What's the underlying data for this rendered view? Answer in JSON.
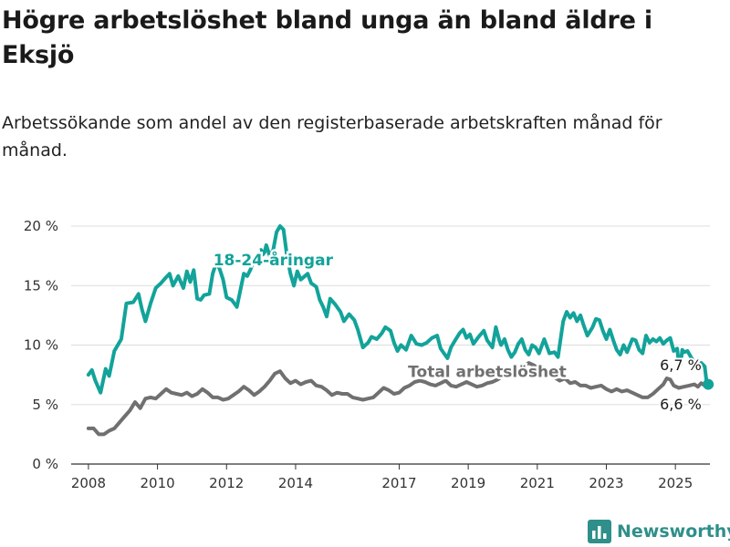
{
  "title": "Högre arbetslöshet bland unga än bland äldre i Eksjö",
  "subtitle": "Arbetssökande som andel av den registerbaserade arbetskraften månad för månad.",
  "brand": {
    "name": "Newsworthy",
    "icon": "bar-chart-logo-icon"
  },
  "colors": {
    "youth": "#12a39a",
    "total": "#707070",
    "grid": "#dddddd",
    "brand": "#2f8f8a"
  },
  "chart_data": {
    "type": "line",
    "title": "Högre arbetslöshet bland unga än bland äldre i Eksjö",
    "subtitle": "Arbetssökande som andel av den registerbaserade arbetskraften månad för månad.",
    "xlabel": "",
    "ylabel": "",
    "xlim": [
      2007.5,
      2026.0
    ],
    "ylim": [
      0,
      20
    ],
    "y_ticks": [
      0,
      5,
      10,
      15,
      20
    ],
    "y_tick_labels": [
      "0 %",
      "5 %",
      "10 %",
      "15 %",
      "20 %"
    ],
    "x_ticks": [
      2008,
      2010,
      2012,
      2014,
      2017,
      2019,
      2021,
      2023,
      2025
    ],
    "x_tick_labels": [
      "2008",
      "2010",
      "2012",
      "2014",
      "2017",
      "2019",
      "2021",
      "2023",
      "2025"
    ],
    "grid": true,
    "legend": "inline labels",
    "series": [
      {
        "name": "18-24-åringar",
        "color": "#12a39a",
        "end_label": "6,7 %",
        "points": [
          [
            2008.0,
            7.5
          ],
          [
            2008.1,
            7.9
          ],
          [
            2008.2,
            7.0
          ],
          [
            2008.35,
            6.0
          ],
          [
            2008.5,
            8.0
          ],
          [
            2008.6,
            7.4
          ],
          [
            2008.75,
            9.5
          ],
          [
            2008.95,
            10.5
          ],
          [
            2009.1,
            13.5
          ],
          [
            2009.3,
            13.6
          ],
          [
            2009.45,
            14.3
          ],
          [
            2009.55,
            13.0
          ],
          [
            2009.65,
            12.0
          ],
          [
            2009.8,
            13.5
          ],
          [
            2009.95,
            14.8
          ],
          [
            2010.1,
            15.2
          ],
          [
            2010.25,
            15.7
          ],
          [
            2010.35,
            16.0
          ],
          [
            2010.45,
            15.0
          ],
          [
            2010.6,
            15.8
          ],
          [
            2010.75,
            14.8
          ],
          [
            2010.85,
            16.2
          ],
          [
            2010.95,
            15.3
          ],
          [
            2011.05,
            16.3
          ],
          [
            2011.15,
            13.9
          ],
          [
            2011.25,
            13.8
          ],
          [
            2011.35,
            14.2
          ],
          [
            2011.5,
            14.3
          ],
          [
            2011.6,
            16.0
          ],
          [
            2011.7,
            16.9
          ],
          [
            2011.8,
            16.4
          ],
          [
            2011.9,
            15.5
          ],
          [
            2012.0,
            14.0
          ],
          [
            2012.15,
            13.8
          ],
          [
            2012.3,
            13.2
          ],
          [
            2012.5,
            16.0
          ],
          [
            2012.6,
            15.8
          ],
          [
            2012.7,
            16.4
          ],
          [
            2012.8,
            17.2
          ],
          [
            2012.9,
            16.8
          ],
          [
            2013.0,
            18.0
          ],
          [
            2013.05,
            17.6
          ],
          [
            2013.1,
            17.8
          ],
          [
            2013.15,
            18.4
          ],
          [
            2013.25,
            17.5
          ],
          [
            2013.35,
            18.0
          ],
          [
            2013.45,
            19.5
          ],
          [
            2013.55,
            20.0
          ],
          [
            2013.65,
            19.7
          ],
          [
            2013.75,
            17.5
          ],
          [
            2013.85,
            16.0
          ],
          [
            2013.95,
            15.0
          ],
          [
            2014.05,
            16.2
          ],
          [
            2014.15,
            15.5
          ],
          [
            2014.35,
            16.0
          ],
          [
            2014.45,
            15.2
          ],
          [
            2014.6,
            14.9
          ],
          [
            2014.7,
            13.8
          ],
          [
            2014.8,
            13.2
          ],
          [
            2014.9,
            12.4
          ],
          [
            2015.0,
            13.9
          ],
          [
            2015.15,
            13.4
          ],
          [
            2015.3,
            12.8
          ],
          [
            2015.4,
            12.0
          ],
          [
            2015.55,
            12.6
          ],
          [
            2015.7,
            12.1
          ],
          [
            2015.8,
            11.3
          ],
          [
            2015.95,
            9.8
          ],
          [
            2016.1,
            10.2
          ],
          [
            2016.2,
            10.7
          ],
          [
            2016.35,
            10.5
          ],
          [
            2016.5,
            11.0
          ],
          [
            2016.6,
            11.5
          ],
          [
            2016.75,
            11.2
          ],
          [
            2016.85,
            10.2
          ],
          [
            2016.95,
            9.5
          ],
          [
            2017.05,
            10.0
          ],
          [
            2017.2,
            9.6
          ],
          [
            2017.35,
            10.8
          ],
          [
            2017.5,
            10.1
          ],
          [
            2017.65,
            10.0
          ],
          [
            2017.8,
            10.2
          ],
          [
            2017.95,
            10.6
          ],
          [
            2018.1,
            10.8
          ],
          [
            2018.2,
            9.7
          ],
          [
            2018.3,
            9.3
          ],
          [
            2018.4,
            8.9
          ],
          [
            2018.5,
            9.8
          ],
          [
            2018.6,
            10.3
          ],
          [
            2018.75,
            11.0
          ],
          [
            2018.85,
            11.3
          ],
          [
            2018.95,
            10.6
          ],
          [
            2019.05,
            10.9
          ],
          [
            2019.15,
            10.1
          ],
          [
            2019.3,
            10.7
          ],
          [
            2019.45,
            11.2
          ],
          [
            2019.55,
            10.4
          ],
          [
            2019.7,
            9.8
          ],
          [
            2019.8,
            11.5
          ],
          [
            2019.9,
            10.4
          ],
          [
            2019.95,
            10.0
          ],
          [
            2020.05,
            10.5
          ],
          [
            2020.15,
            9.6
          ],
          [
            2020.25,
            9.0
          ],
          [
            2020.35,
            9.4
          ],
          [
            2020.45,
            10.1
          ],
          [
            2020.55,
            10.5
          ],
          [
            2020.65,
            9.6
          ],
          [
            2020.75,
            9.2
          ],
          [
            2020.85,
            10.0
          ],
          [
            2020.95,
            9.8
          ],
          [
            2021.05,
            9.3
          ],
          [
            2021.2,
            10.5
          ],
          [
            2021.35,
            9.3
          ],
          [
            2021.5,
            9.4
          ],
          [
            2021.6,
            9.0
          ],
          [
            2021.75,
            12.0
          ],
          [
            2021.85,
            12.8
          ],
          [
            2021.95,
            12.3
          ],
          [
            2022.05,
            12.7
          ],
          [
            2022.15,
            12.0
          ],
          [
            2022.25,
            12.5
          ],
          [
            2022.35,
            11.6
          ],
          [
            2022.45,
            10.8
          ],
          [
            2022.6,
            11.5
          ],
          [
            2022.7,
            12.2
          ],
          [
            2022.8,
            12.1
          ],
          [
            2022.9,
            11.2
          ],
          [
            2023.0,
            10.5
          ],
          [
            2023.1,
            11.3
          ],
          [
            2023.2,
            10.4
          ],
          [
            2023.3,
            9.6
          ],
          [
            2023.4,
            9.2
          ],
          [
            2023.5,
            10.0
          ],
          [
            2023.6,
            9.4
          ],
          [
            2023.75,
            10.5
          ],
          [
            2023.85,
            10.4
          ],
          [
            2023.95,
            9.6
          ],
          [
            2024.05,
            9.3
          ],
          [
            2024.15,
            10.8
          ],
          [
            2024.25,
            10.2
          ],
          [
            2024.35,
            10.5
          ],
          [
            2024.45,
            10.3
          ],
          [
            2024.55,
            10.6
          ],
          [
            2024.65,
            10.1
          ],
          [
            2024.75,
            10.4
          ],
          [
            2024.85,
            10.6
          ],
          [
            2024.95,
            9.5
          ],
          [
            2025.05,
            9.7
          ],
          [
            2025.1,
            8.5
          ],
          [
            2025.15,
            8.4
          ],
          [
            2025.2,
            9.6
          ],
          [
            2025.25,
            9.4
          ],
          [
            2025.35,
            9.5
          ],
          [
            2025.45,
            9.0
          ],
          [
            2025.55,
            8.5
          ],
          [
            2025.65,
            8.0
          ],
          [
            2025.75,
            8.5
          ],
          [
            2025.85,
            8.2
          ],
          [
            2025.9,
            7.0
          ],
          [
            2025.95,
            6.7
          ]
        ]
      },
      {
        "name": "Total arbetslöshet",
        "color": "#707070",
        "end_label": "6,6 %",
        "points": [
          [
            2008.0,
            3.0
          ],
          [
            2008.15,
            3.0
          ],
          [
            2008.3,
            2.5
          ],
          [
            2008.45,
            2.5
          ],
          [
            2008.6,
            2.8
          ],
          [
            2008.75,
            3.0
          ],
          [
            2008.9,
            3.5
          ],
          [
            2009.05,
            4.0
          ],
          [
            2009.2,
            4.5
          ],
          [
            2009.35,
            5.2
          ],
          [
            2009.5,
            4.7
          ],
          [
            2009.65,
            5.5
          ],
          [
            2009.8,
            5.6
          ],
          [
            2009.95,
            5.5
          ],
          [
            2010.1,
            5.9
          ],
          [
            2010.25,
            6.3
          ],
          [
            2010.4,
            6.0
          ],
          [
            2010.55,
            5.9
          ],
          [
            2010.7,
            5.8
          ],
          [
            2010.85,
            6.0
          ],
          [
            2011.0,
            5.7
          ],
          [
            2011.15,
            5.9
          ],
          [
            2011.3,
            6.3
          ],
          [
            2011.45,
            6.0
          ],
          [
            2011.6,
            5.6
          ],
          [
            2011.75,
            5.6
          ],
          [
            2011.9,
            5.4
          ],
          [
            2012.05,
            5.5
          ],
          [
            2012.2,
            5.8
          ],
          [
            2012.35,
            6.1
          ],
          [
            2012.5,
            6.5
          ],
          [
            2012.65,
            6.2
          ],
          [
            2012.8,
            5.8
          ],
          [
            2012.95,
            6.1
          ],
          [
            2013.1,
            6.5
          ],
          [
            2013.25,
            7.0
          ],
          [
            2013.4,
            7.6
          ],
          [
            2013.55,
            7.8
          ],
          [
            2013.7,
            7.2
          ],
          [
            2013.85,
            6.8
          ],
          [
            2014.0,
            7.0
          ],
          [
            2014.15,
            6.7
          ],
          [
            2014.3,
            6.9
          ],
          [
            2014.45,
            7.0
          ],
          [
            2014.6,
            6.6
          ],
          [
            2014.75,
            6.5
          ],
          [
            2014.9,
            6.2
          ],
          [
            2015.05,
            5.8
          ],
          [
            2015.2,
            6.0
          ],
          [
            2015.35,
            5.9
          ],
          [
            2015.5,
            5.9
          ],
          [
            2015.65,
            5.6
          ],
          [
            2015.8,
            5.5
          ],
          [
            2015.95,
            5.4
          ],
          [
            2016.1,
            5.5
          ],
          [
            2016.25,
            5.6
          ],
          [
            2016.4,
            6.0
          ],
          [
            2016.55,
            6.4
          ],
          [
            2016.7,
            6.2
          ],
          [
            2016.85,
            5.9
          ],
          [
            2017.0,
            6.0
          ],
          [
            2017.15,
            6.4
          ],
          [
            2017.3,
            6.6
          ],
          [
            2017.45,
            6.9
          ],
          [
            2017.6,
            7.0
          ],
          [
            2017.75,
            6.9
          ],
          [
            2017.9,
            6.7
          ],
          [
            2018.05,
            6.6
          ],
          [
            2018.2,
            6.8
          ],
          [
            2018.35,
            7.0
          ],
          [
            2018.5,
            6.6
          ],
          [
            2018.65,
            6.5
          ],
          [
            2018.8,
            6.7
          ],
          [
            2018.95,
            6.9
          ],
          [
            2019.1,
            6.7
          ],
          [
            2019.25,
            6.5
          ],
          [
            2019.4,
            6.6
          ],
          [
            2019.55,
            6.8
          ],
          [
            2019.7,
            6.9
          ],
          [
            2019.85,
            7.1
          ],
          [
            2020.0,
            7.4
          ],
          [
            2020.15,
            7.8
          ],
          [
            2020.3,
            8.0
          ],
          [
            2020.45,
            8.3
          ],
          [
            2020.6,
            8.2
          ],
          [
            2020.75,
            8.5
          ],
          [
            2020.9,
            8.3
          ],
          [
            2021.05,
            8.0
          ],
          [
            2021.2,
            7.8
          ],
          [
            2021.35,
            7.6
          ],
          [
            2021.5,
            7.3
          ],
          [
            2021.65,
            7.0
          ],
          [
            2021.8,
            7.2
          ],
          [
            2021.95,
            6.8
          ],
          [
            2022.1,
            6.9
          ],
          [
            2022.25,
            6.6
          ],
          [
            2022.4,
            6.6
          ],
          [
            2022.55,
            6.4
          ],
          [
            2022.7,
            6.5
          ],
          [
            2022.85,
            6.6
          ],
          [
            2023.0,
            6.3
          ],
          [
            2023.15,
            6.1
          ],
          [
            2023.3,
            6.3
          ],
          [
            2023.45,
            6.1
          ],
          [
            2023.6,
            6.2
          ],
          [
            2023.75,
            6.0
          ],
          [
            2023.9,
            5.8
          ],
          [
            2024.05,
            5.6
          ],
          [
            2024.2,
            5.6
          ],
          [
            2024.35,
            5.9
          ],
          [
            2024.5,
            6.3
          ],
          [
            2024.65,
            6.7
          ],
          [
            2024.75,
            7.2
          ],
          [
            2024.85,
            7.1
          ],
          [
            2024.95,
            6.6
          ],
          [
            2025.1,
            6.4
          ],
          [
            2025.25,
            6.5
          ],
          [
            2025.4,
            6.6
          ],
          [
            2025.55,
            6.7
          ],
          [
            2025.65,
            6.5
          ],
          [
            2025.75,
            6.8
          ],
          [
            2025.85,
            6.6
          ],
          [
            2025.95,
            6.6
          ]
        ]
      }
    ]
  }
}
